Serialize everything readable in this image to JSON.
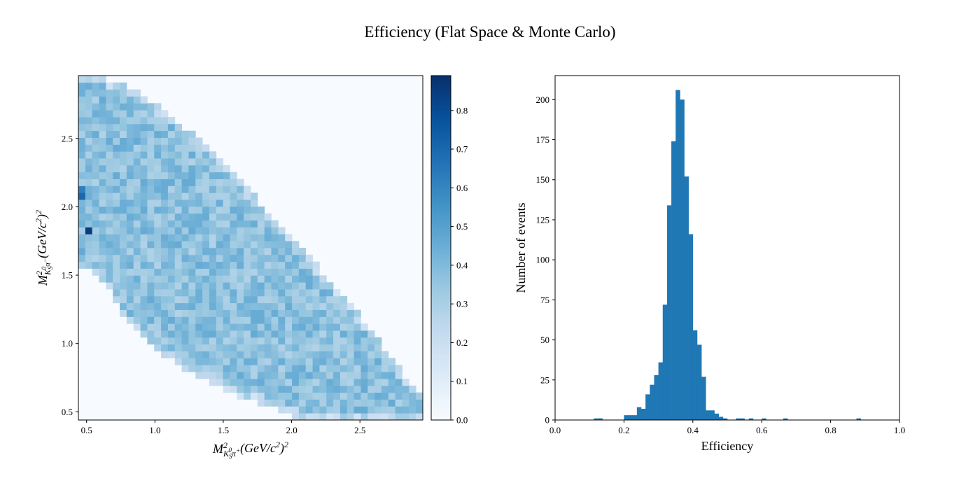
{
  "figure": {
    "title": "Efficiency (Flat Space & Monte Carlo)"
  },
  "chart_data": [
    {
      "type": "heatmap",
      "title": "",
      "xlabel": {
        "base": "M",
        "sup": "2",
        "sub_k": "K",
        "sub_k_sub": "S",
        "sub_k_sup": "0",
        "sub_pi": "π",
        "sub_pi_sup": "+",
        "rest": "(GeV/c",
        "rest_sup": "2",
        "rest_end": ")",
        "end_sup": "2"
      },
      "ylabel": {
        "base": "M",
        "sup": "2",
        "sub_k": "K",
        "sub_k_sub": "S",
        "sub_k_sup": "0",
        "sub_pi": "π",
        "sub_pi_sup": "−",
        "rest": "(GeV/c",
        "rest_sup": "2",
        "rest_end": ")",
        "end_sup": "2"
      },
      "xlim": [
        0.44,
        2.96
      ],
      "ylim": [
        0.44,
        2.96
      ],
      "x_ticks": [
        "0.5",
        "1.0",
        "1.5",
        "2.0",
        "2.5"
      ],
      "x_tick_values": [
        0.5,
        1.0,
        1.5,
        2.0,
        2.5
      ],
      "y_ticks": [
        "0.5",
        "1.0",
        "1.5",
        "2.0",
        "2.5"
      ],
      "y_tick_values": [
        0.5,
        1.0,
        1.5,
        2.0,
        2.5
      ],
      "colormap": "Blues",
      "colormap_stops": [
        "#f7fbff",
        "#deebf7",
        "#c6dbef",
        "#9ecae1",
        "#6baed6",
        "#4292c6",
        "#2171b5",
        "#08519c",
        "#08306b"
      ],
      "value_range": [
        0.0,
        0.89
      ],
      "region": {
        "description_lower_boundary_x": [
          0.44,
          0.6,
          0.8,
          1.0,
          1.2,
          1.4,
          1.6,
          1.8,
          2.0,
          2.1,
          2.96
        ],
        "description_lower_boundary_y": [
          1.55,
          1.5,
          1.15,
          0.95,
          0.82,
          0.72,
          0.62,
          0.55,
          0.47,
          0.44,
          0.44
        ],
        "upper_boundary_x": [
          0.44,
          0.6,
          0.8,
          1.0,
          1.2,
          1.4,
          1.6,
          1.8,
          2.0,
          2.2,
          2.4,
          2.6,
          2.8,
          2.96
        ],
        "upper_boundary_y": [
          2.96,
          2.96,
          2.88,
          2.75,
          2.6,
          2.42,
          2.22,
          2.0,
          1.78,
          1.55,
          1.32,
          1.08,
          0.8,
          0.6
        ]
      },
      "typical_value": 0.37,
      "outliers": [
        {
          "x": 0.52,
          "y": 1.82,
          "value": 0.85
        },
        {
          "x": 0.46,
          "y": 2.1,
          "value": 0.62
        },
        {
          "x": 0.46,
          "y": 2.06,
          "value": 0.7
        },
        {
          "x": 1.86,
          "y": 0.48,
          "value": 0.62
        }
      ],
      "colorbar": {
        "ticks": [
          "0.0",
          "0.1",
          "0.2",
          "0.3",
          "0.4",
          "0.5",
          "0.6",
          "0.7",
          "0.8"
        ],
        "tick_values": [
          0.0,
          0.1,
          0.2,
          0.3,
          0.4,
          0.5,
          0.6,
          0.7,
          0.8
        ]
      }
    },
    {
      "type": "bar",
      "title": "",
      "xlabel": "Efficiency",
      "ylabel": "Number of events",
      "xlim": [
        0.0,
        1.0
      ],
      "ylim": [
        0,
        215
      ],
      "x_ticks": [
        "0.0",
        "0.2",
        "0.4",
        "0.6",
        "0.8",
        "1.0"
      ],
      "x_tick_values": [
        0.0,
        0.2,
        0.4,
        0.6,
        0.8,
        1.0
      ],
      "y_ticks": [
        "0",
        "25",
        "50",
        "75",
        "100",
        "125",
        "150",
        "175",
        "200"
      ],
      "y_tick_values": [
        0,
        25,
        50,
        75,
        100,
        125,
        150,
        175,
        200
      ],
      "color": "#1f77b4",
      "bin_width": 0.0125,
      "bins": [
        {
          "x": 0.1125,
          "count": 1
        },
        {
          "x": 0.125,
          "count": 1
        },
        {
          "x": 0.2,
          "count": 3
        },
        {
          "x": 0.2125,
          "count": 3
        },
        {
          "x": 0.225,
          "count": 3
        },
        {
          "x": 0.2375,
          "count": 8
        },
        {
          "x": 0.25,
          "count": 7
        },
        {
          "x": 0.2625,
          "count": 16
        },
        {
          "x": 0.275,
          "count": 22
        },
        {
          "x": 0.2875,
          "count": 28
        },
        {
          "x": 0.3,
          "count": 36
        },
        {
          "x": 0.3125,
          "count": 72
        },
        {
          "x": 0.325,
          "count": 134
        },
        {
          "x": 0.3375,
          "count": 174
        },
        {
          "x": 0.35,
          "count": 206
        },
        {
          "x": 0.3625,
          "count": 200
        },
        {
          "x": 0.375,
          "count": 152
        },
        {
          "x": 0.3875,
          "count": 116
        },
        {
          "x": 0.4,
          "count": 56
        },
        {
          "x": 0.4125,
          "count": 47
        },
        {
          "x": 0.425,
          "count": 27
        },
        {
          "x": 0.4375,
          "count": 6
        },
        {
          "x": 0.45,
          "count": 6
        },
        {
          "x": 0.4625,
          "count": 4
        },
        {
          "x": 0.475,
          "count": 2
        },
        {
          "x": 0.4875,
          "count": 1
        },
        {
          "x": 0.525,
          "count": 1
        },
        {
          "x": 0.5375,
          "count": 1
        },
        {
          "x": 0.5625,
          "count": 1
        },
        {
          "x": 0.6,
          "count": 1
        },
        {
          "x": 0.6625,
          "count": 1
        },
        {
          "x": 0.875,
          "count": 1
        }
      ]
    }
  ]
}
